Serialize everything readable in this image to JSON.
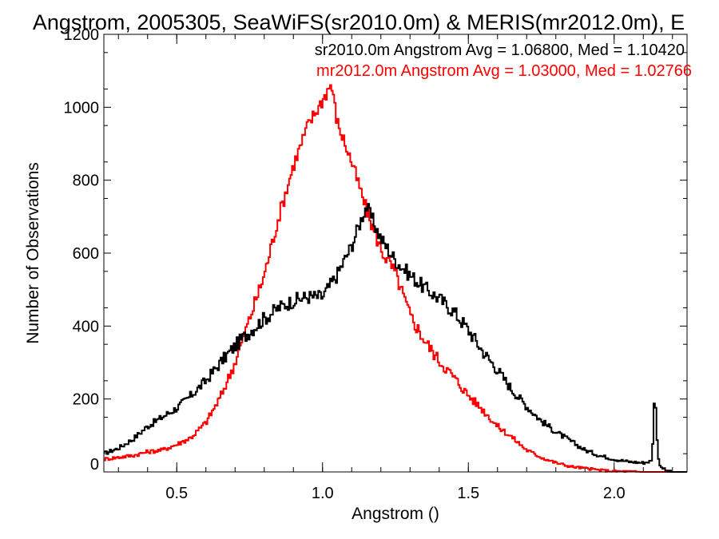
{
  "chart_data": {
    "type": "line",
    "title": "Angstrom, 2005305, SeaWiFS(sr2010.0m) & MERIS(mr2012.0m), E",
    "xlabel": "Angstrom ()",
    "ylabel": "Number of Observations",
    "xlim": [
      0.25,
      2.25
    ],
    "ylim": [
      0,
      1200
    ],
    "x_ticks": [
      "0.5",
      "1.0",
      "1.5",
      "2.0"
    ],
    "y_ticks": [
      "0",
      "200",
      "400",
      "600",
      "800",
      "1000",
      "1200"
    ],
    "grid": false,
    "legend_position": "top-right",
    "series": [
      {
        "name": "sr2010.0m Angstrom Avg = 1.06800, Med = 1.10420",
        "color": "#000000",
        "x": [
          0.25,
          0.3,
          0.35,
          0.4,
          0.45,
          0.5,
          0.55,
          0.6,
          0.65,
          0.7,
          0.75,
          0.8,
          0.85,
          0.9,
          0.95,
          1.0,
          1.05,
          1.1,
          1.15,
          1.2,
          1.25,
          1.3,
          1.35,
          1.4,
          1.45,
          1.5,
          1.55,
          1.6,
          1.65,
          1.7,
          1.75,
          1.8,
          1.85,
          1.9,
          1.95,
          2.0,
          2.05,
          2.1,
          2.13,
          2.14,
          2.15,
          2.16,
          2.18,
          2.2,
          2.25
        ],
        "y": [
          50,
          65,
          90,
          125,
          150,
          175,
          210,
          250,
          300,
          345,
          385,
          420,
          450,
          470,
          480,
          480,
          540,
          620,
          730,
          640,
          580,
          540,
          505,
          475,
          440,
          390,
          330,
          280,
          225,
          180,
          140,
          110,
          85,
          60,
          45,
          35,
          28,
          25,
          30,
          235,
          40,
          15,
          3,
          0,
          0
        ]
      },
      {
        "name": "mr2012.0m Angstrom Avg = 1.03000, Med = 1.02766",
        "color": "#ff0000",
        "x": [
          0.25,
          0.3,
          0.35,
          0.4,
          0.45,
          0.5,
          0.55,
          0.6,
          0.65,
          0.7,
          0.75,
          0.8,
          0.85,
          0.9,
          0.95,
          1.0,
          1.03,
          1.05,
          1.1,
          1.15,
          1.2,
          1.25,
          1.3,
          1.35,
          1.4,
          1.45,
          1.5,
          1.55,
          1.6,
          1.65,
          1.7,
          1.75,
          1.8,
          1.85,
          1.9,
          1.95,
          2.0,
          2.1,
          2.25
        ],
        "y": [
          35,
          40,
          45,
          55,
          60,
          75,
          95,
          135,
          205,
          300,
          420,
          540,
          700,
          840,
          950,
          1020,
          1065,
          960,
          850,
          720,
          610,
          545,
          430,
          360,
          305,
          260,
          210,
          170,
          125,
          95,
          60,
          40,
          25,
          15,
          10,
          5,
          2,
          0,
          0
        ]
      }
    ]
  }
}
